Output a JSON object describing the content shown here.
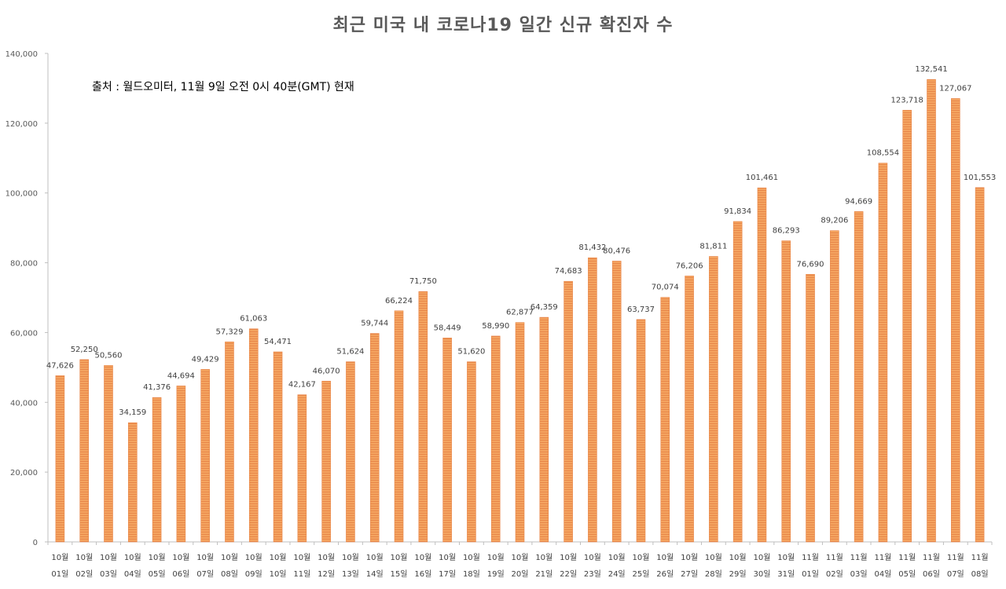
{
  "chart_data": {
    "type": "bar",
    "title": "최근 미국 내 코로나19 일간 신규 확진자 수",
    "annotation": "출처 : 월드오미터, 11월 9일 오전 0시 40분(GMT) 현재",
    "categories": [
      {
        "month": "10월",
        "day": "01일"
      },
      {
        "month": "10월",
        "day": "02일"
      },
      {
        "month": "10월",
        "day": "03일"
      },
      {
        "month": "10월",
        "day": "04일"
      },
      {
        "month": "10월",
        "day": "05일"
      },
      {
        "month": "10월",
        "day": "06일"
      },
      {
        "month": "10월",
        "day": "07일"
      },
      {
        "month": "10월",
        "day": "08일"
      },
      {
        "month": "10월",
        "day": "09일"
      },
      {
        "month": "10월",
        "day": "10일"
      },
      {
        "month": "10월",
        "day": "11일"
      },
      {
        "month": "10월",
        "day": "12일"
      },
      {
        "month": "10월",
        "day": "13일"
      },
      {
        "month": "10월",
        "day": "14일"
      },
      {
        "month": "10월",
        "day": "15일"
      },
      {
        "month": "10월",
        "day": "16일"
      },
      {
        "month": "10월",
        "day": "17일"
      },
      {
        "month": "10월",
        "day": "18일"
      },
      {
        "month": "10월",
        "day": "19일"
      },
      {
        "month": "10월",
        "day": "20일"
      },
      {
        "month": "10월",
        "day": "21일"
      },
      {
        "month": "10월",
        "day": "22일"
      },
      {
        "month": "10월",
        "day": "23일"
      },
      {
        "month": "10월",
        "day": "24일"
      },
      {
        "month": "10월",
        "day": "25일"
      },
      {
        "month": "10월",
        "day": "26일"
      },
      {
        "month": "10월",
        "day": "27일"
      },
      {
        "month": "10월",
        "day": "28일"
      },
      {
        "month": "10월",
        "day": "29일"
      },
      {
        "month": "10월",
        "day": "30일"
      },
      {
        "month": "10월",
        "day": "31일"
      },
      {
        "month": "11월",
        "day": "01일"
      },
      {
        "month": "11월",
        "day": "02일"
      },
      {
        "month": "11월",
        "day": "03일"
      },
      {
        "month": "11월",
        "day": "04일"
      },
      {
        "month": "11월",
        "day": "05일"
      },
      {
        "month": "11월",
        "day": "06일"
      },
      {
        "month": "11월",
        "day": "07일"
      },
      {
        "month": "11월",
        "day": "08일"
      }
    ],
    "values": [
      47626,
      52250,
      50560,
      34159,
      41376,
      44694,
      49429,
      57329,
      61063,
      54471,
      42167,
      46070,
      51624,
      59744,
      66224,
      71750,
      58449,
      51620,
      58990,
      62877,
      64359,
      74683,
      81432,
      80476,
      63737,
      70074,
      76206,
      81811,
      91834,
      101461,
      86293,
      76690,
      89206,
      94669,
      108554,
      123718,
      132541,
      127067,
      101553
    ],
    "value_labels": [
      "47,626",
      "52,250",
      "50,560",
      "34,159",
      "41,376",
      "44,694",
      "49,429",
      "57,329",
      "61,063",
      "54,471",
      "42,167",
      "46,070",
      "51,624",
      "59,744",
      "66,224",
      "71,750",
      "58,449",
      "51,620",
      "58,990",
      "62,877",
      "64,359",
      "74,683",
      "81,432",
      "80,476",
      "63,737",
      "70,074",
      "76,206",
      "81,811",
      "91,834",
      "101,461",
      "86,293",
      "76,690",
      "89,206",
      "94,669",
      "108,554",
      "123,718",
      "132,541",
      "127,067",
      "101,553"
    ],
    "ylim": [
      0,
      140000
    ],
    "yticks": [
      0,
      20000,
      40000,
      60000,
      80000,
      100000,
      120000,
      140000
    ],
    "ytick_labels": [
      "0",
      "20,000",
      "40,000",
      "60,000",
      "80,000",
      "100,000",
      "120,000",
      "140,000"
    ],
    "grid": false,
    "legend": "none",
    "bar_color": "#F4A460",
    "bar_edge_color": "#E8874A"
  }
}
